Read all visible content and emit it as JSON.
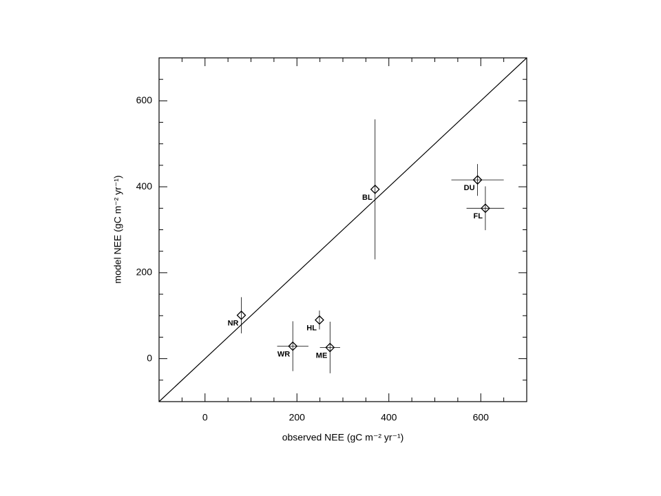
{
  "chart_data": {
    "type": "scatter",
    "xlabel": "observed NEE (gC m⁻² yr⁻¹)",
    "ylabel": "model NEE (gC m⁻² yr⁻¹)",
    "xlim": [
      -100,
      700
    ],
    "ylim": [
      -100,
      700
    ],
    "xticks": [
      0,
      200,
      400,
      600
    ],
    "yticks": [
      0,
      200,
      400,
      600
    ],
    "xminorticks": [
      -50,
      50,
      100,
      150,
      250,
      300,
      350,
      450,
      500,
      550,
      650
    ],
    "yminorticks": [
      -50,
      50,
      100,
      150,
      250,
      300,
      350,
      450,
      500,
      550,
      650
    ],
    "identity_line": true,
    "series": [
      {
        "color": "#000000",
        "labels": [
          "NR",
          "WR",
          "HL",
          "ME",
          "BL",
          "DU",
          "FL"
        ],
        "x": [
          79,
          191,
          249,
          272,
          370,
          593,
          610
        ],
        "y": [
          101,
          29,
          90,
          26,
          394,
          416,
          350
        ],
        "xerr": [
          null,
          34,
          null,
          22,
          null,
          57,
          41
        ],
        "yerr": [
          42,
          58,
          22,
          60,
          163,
          37,
          51
        ]
      }
    ]
  }
}
